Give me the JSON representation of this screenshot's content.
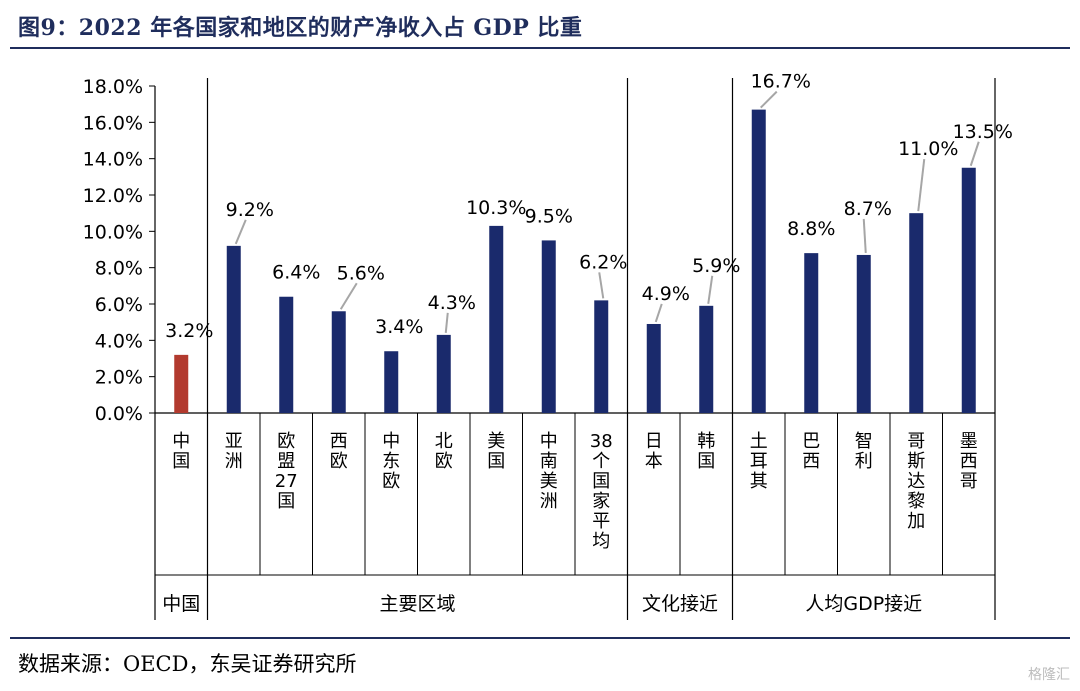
{
  "figure_title": "图9：2022 年各国家和地区的财产净收入占 GDP 比重",
  "source": "数据来源：OECD，东吴证券研究所",
  "watermark": "格隆汇",
  "colors": {
    "highlight": "#b23a2e",
    "bar": "#1a2a6c",
    "rule": "#1f2d5c"
  },
  "chart_data": {
    "type": "bar",
    "title": "",
    "xlabel": "",
    "ylabel": "",
    "ylim": [
      0,
      18
    ],
    "y_ticks": [
      "0.0%",
      "2.0%",
      "4.0%",
      "6.0%",
      "8.0%",
      "10.0%",
      "12.0%",
      "14.0%",
      "16.0%",
      "18.0%"
    ],
    "categories": [
      "中国",
      "亚洲",
      "欧盟27国",
      "西欧",
      "中东欧",
      "北欧",
      "美国",
      "中南美洲",
      "38个国家平均",
      "日本",
      "韩国",
      "土耳其",
      "巴西",
      "智利",
      "哥斯达黎加",
      "墨西哥"
    ],
    "values": [
      3.2,
      9.2,
      6.4,
      5.6,
      3.4,
      4.3,
      10.3,
      9.5,
      6.2,
      4.9,
      5.9,
      16.7,
      8.8,
      8.7,
      11.0,
      13.5
    ],
    "data_labels": [
      "3.2%",
      "9.2%",
      "6.4%",
      "5.6%",
      "3.4%",
      "4.3%",
      "10.3%",
      "9.5%",
      "6.2%",
      "4.9%",
      "5.9%",
      "16.7%",
      "8.8%",
      "8.7%",
      "11.0%",
      "13.5%"
    ],
    "groups": [
      {
        "label": "中国",
        "count": 1
      },
      {
        "label": "主要区域",
        "count": 8
      },
      {
        "label": "文化接近",
        "count": 2
      },
      {
        "label": "人均GDP接近",
        "count": 5
      }
    ],
    "grid": false,
    "legend": "none"
  }
}
